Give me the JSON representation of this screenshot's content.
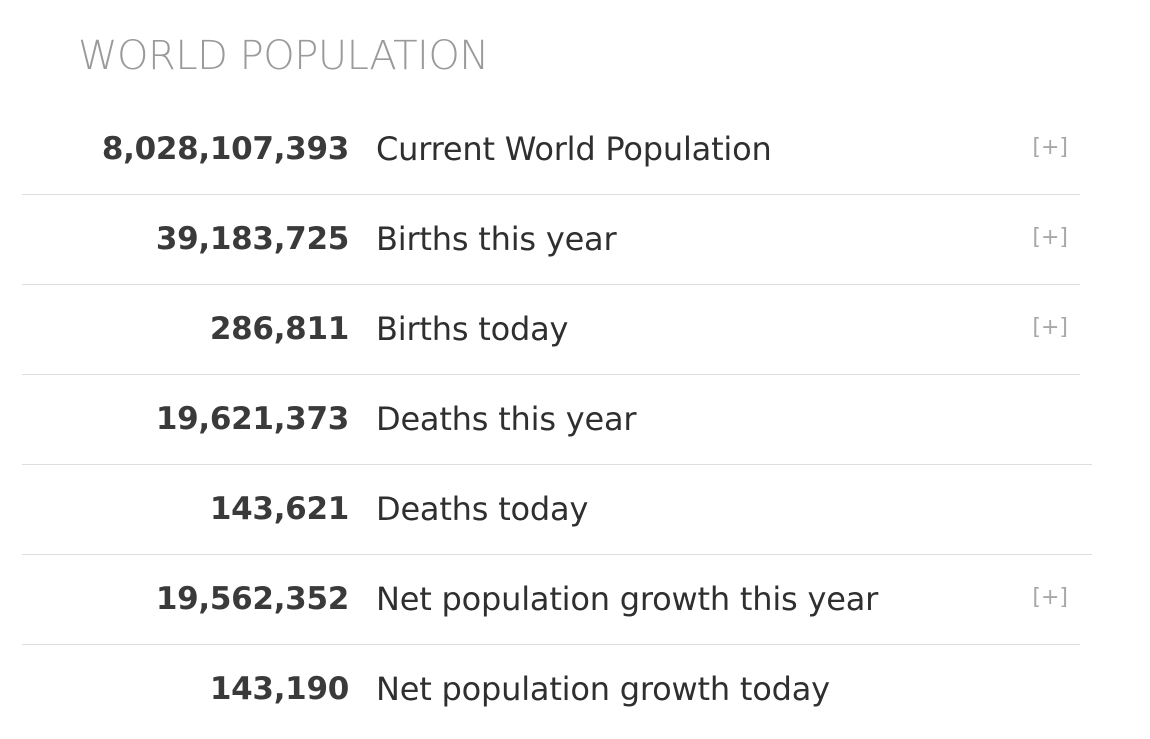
{
  "title": "WORLD POPULATION",
  "rows": [
    {
      "value": "8,028,107,393",
      "label": "Current World Population",
      "expand": "[+]"
    },
    {
      "value": "39,183,725",
      "label": "Births this year",
      "expand": "[+]"
    },
    {
      "value": "286,811",
      "label": "Births today",
      "expand": "[+]"
    },
    {
      "value": "19,621,373",
      "label": "Deaths this year",
      "expand": ""
    },
    {
      "value": "143,621",
      "label": "Deaths today",
      "expand": ""
    },
    {
      "value": "19,562,352",
      "label": "Net population growth this year",
      "expand": "[+]"
    },
    {
      "value": "143,190",
      "label": "Net population growth today",
      "expand": ""
    }
  ]
}
